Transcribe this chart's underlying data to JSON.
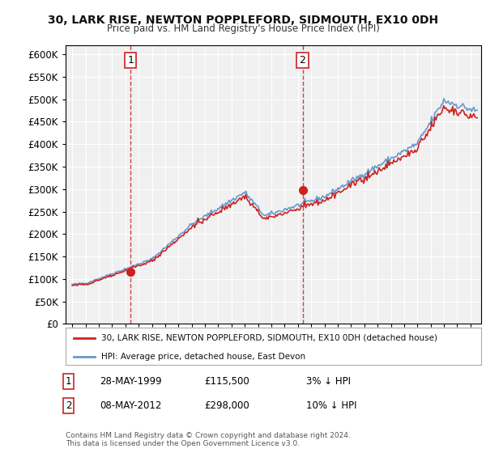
{
  "title": "30, LARK RISE, NEWTON POPPLEFORD, SIDMOUTH, EX10 0DH",
  "subtitle": "Price paid vs. HM Land Registry's House Price Index (HPI)",
  "ylim": [
    0,
    620000
  ],
  "ytick_vals": [
    0,
    50000,
    100000,
    150000,
    200000,
    250000,
    300000,
    350000,
    400000,
    450000,
    500000,
    550000,
    600000
  ],
  "hpi_color": "#6699cc",
  "price_color": "#cc2222",
  "marker1_price": 115500,
  "marker2_price": 298000,
  "marker1_x": 1999.4,
  "marker2_x": 2012.35,
  "legend_line1": "30, LARK RISE, NEWTON POPPLEFORD, SIDMOUTH, EX10 0DH (detached house)",
  "legend_line2": "HPI: Average price, detached house, East Devon",
  "ann1_date": "28-MAY-1999",
  "ann1_price": "£115,500",
  "ann1_hpi": "3% ↓ HPI",
  "ann2_date": "08-MAY-2012",
  "ann2_price": "£298,000",
  "ann2_hpi": "10% ↓ HPI",
  "footnote": "Contains HM Land Registry data © Crown copyright and database right 2024.\nThis data is licensed under the Open Government Licence v3.0.",
  "bg_color": "#ffffff",
  "plot_bg_color": "#f0f0f0",
  "grid_color": "#ffffff"
}
